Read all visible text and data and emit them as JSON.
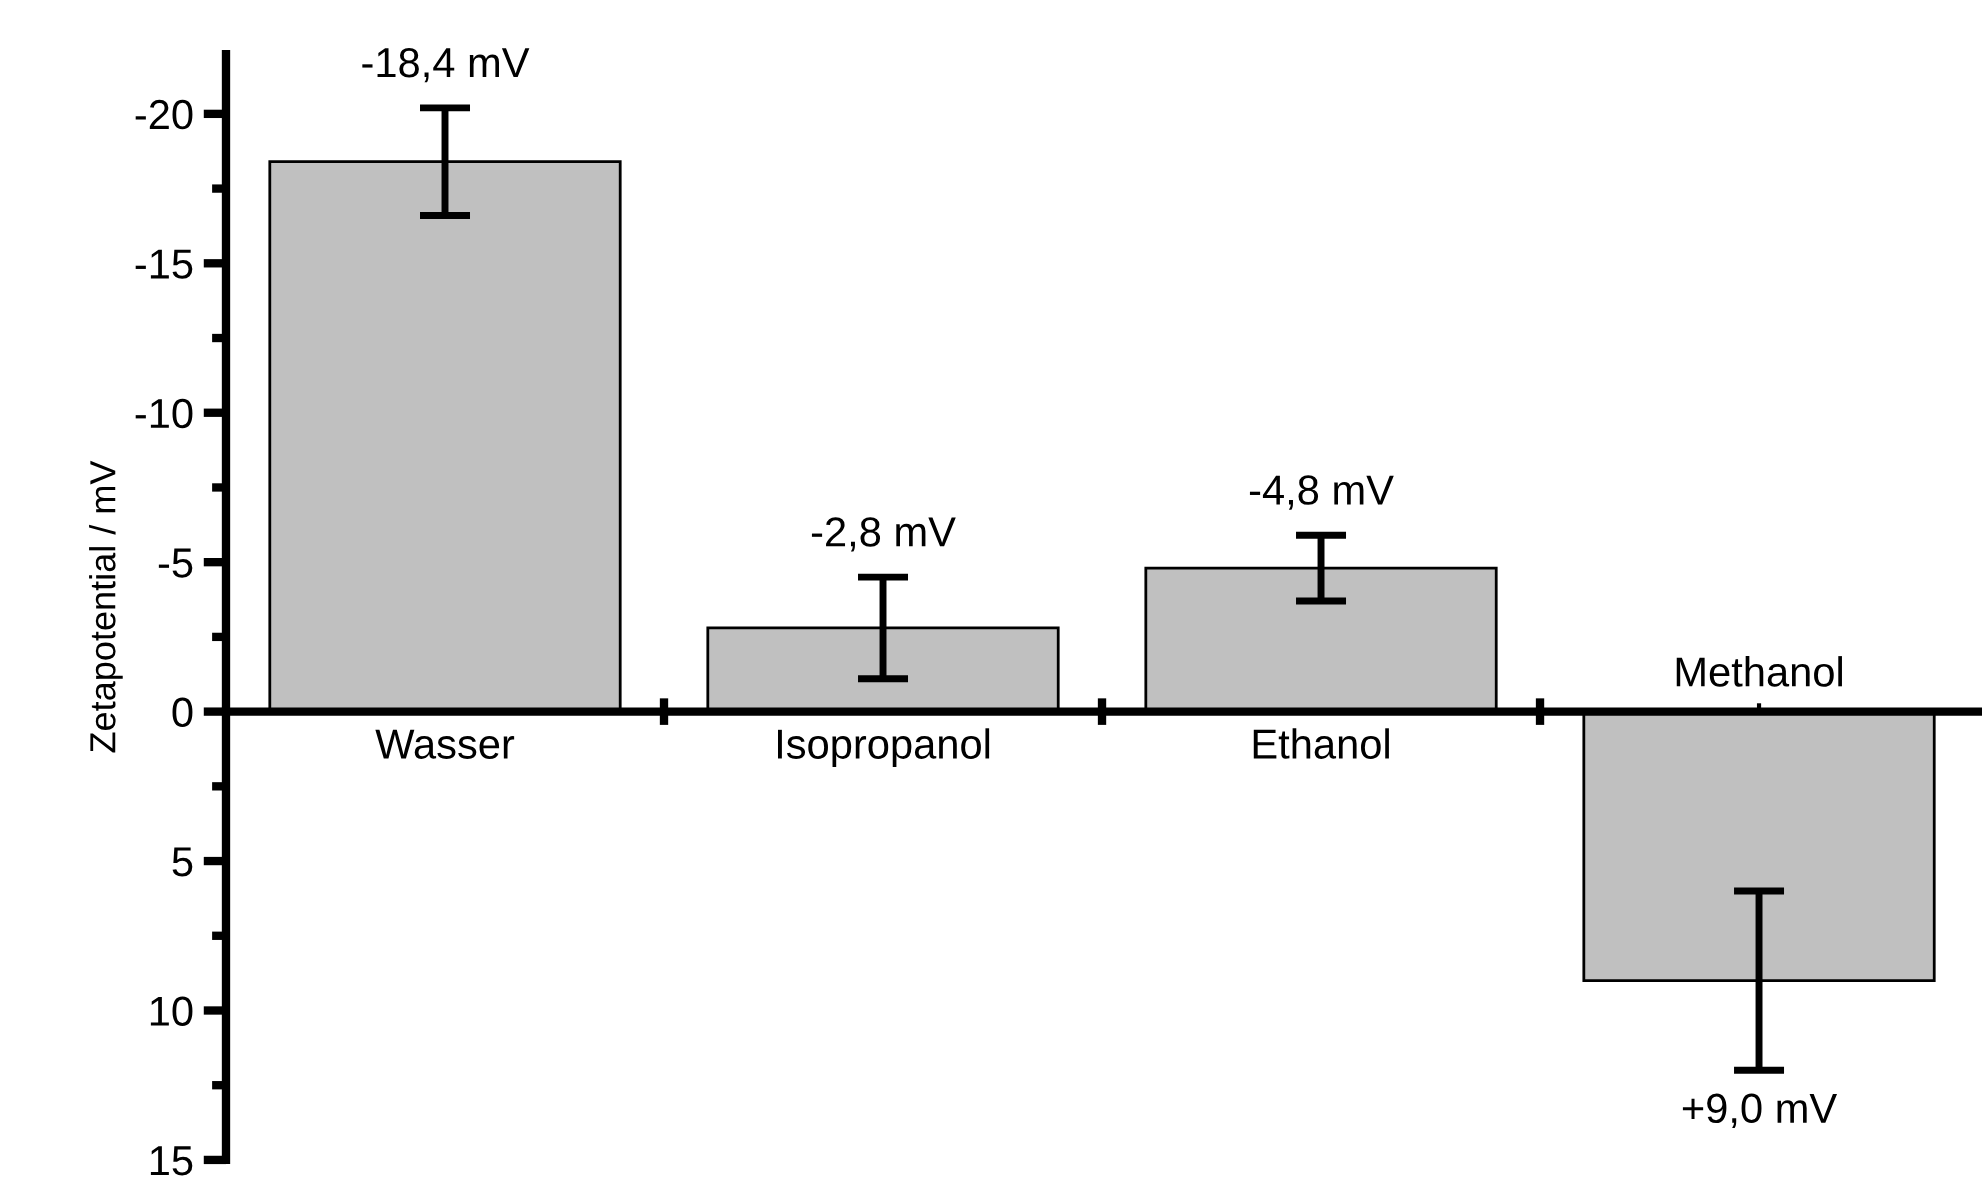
{
  "chart_data": {
    "type": "bar",
    "ylabel": "Zetapotential / mV",
    "categories": [
      "Wasser",
      "Isopropanol",
      "Ethanol",
      "Methanol"
    ],
    "values": [
      -18.4,
      -2.8,
      -4.8,
      9.0
    ],
    "errors": [
      1.8,
      1.7,
      1.1,
      3.0
    ],
    "value_labels": [
      "-18,4 mV",
      "-2,8 mV",
      "-4,8 mV",
      "+9,0 mV"
    ],
    "color": "#c0c0c0",
    "ylim": [
      15,
      -22
    ],
    "yticks": [
      -20,
      -15,
      -10,
      -5,
      0,
      5,
      10,
      15
    ],
    "grid": false
  }
}
